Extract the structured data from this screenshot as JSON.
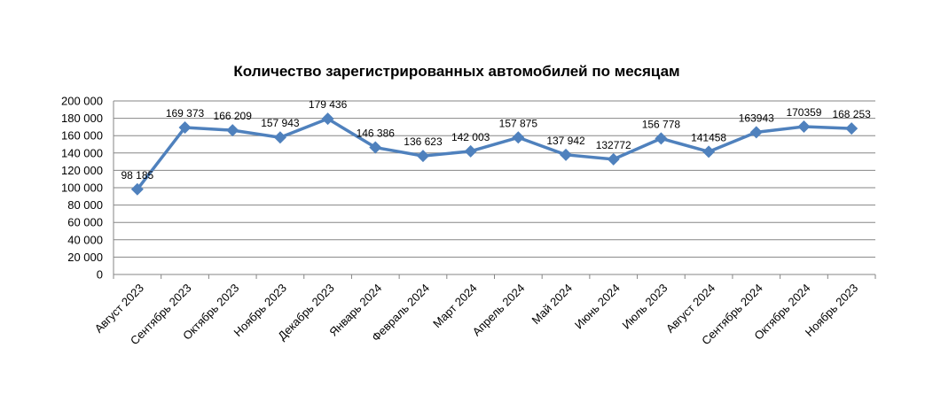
{
  "chart_data": {
    "type": "line",
    "title": "Количество зарегистрированных автомобилей по месяцам",
    "xlabel": "",
    "ylabel": "",
    "categories": [
      "Август 2023",
      "Сентябрь 2023",
      "Октябрь 2023",
      "Ноябрь 2023",
      "Декабрь 2023",
      "Январь 2024",
      "Февраль 2024",
      "Март 2024",
      "Апрель 2024",
      "Май 2024",
      "Июнь 2024",
      "Июль 2023",
      "Август 2024",
      "Сентябрь 2024",
      "Октябрь 2024",
      "Ноябрь 2023"
    ],
    "series": [
      {
        "values": [
          98185,
          169373,
          166209,
          157943,
          179436,
          146386,
          136623,
          142003,
          157875,
          137942,
          132772,
          156778,
          141458,
          163943,
          170359,
          168253
        ],
        "labels": [
          "98 185",
          "169 373",
          "166 209",
          "157 943",
          "179 436",
          "146 386",
          "136 623",
          "142 003",
          "157 875",
          "137 942",
          "132772",
          "156 778",
          "141458",
          "163943",
          "170359",
          "168 253"
        ],
        "color": "#4f81bd"
      }
    ],
    "ylim": [
      0,
      200000
    ],
    "yticks": [
      0,
      20000,
      40000,
      60000,
      80000,
      100000,
      120000,
      140000,
      160000,
      180000,
      200000
    ],
    "ytick_labels": [
      "0",
      "20 000",
      "40 000",
      "60 000",
      "80 000",
      "100 000",
      "120 000",
      "140 000",
      "160 000",
      "180 000",
      "200 000"
    ],
    "grid": true,
    "legend": "none"
  }
}
